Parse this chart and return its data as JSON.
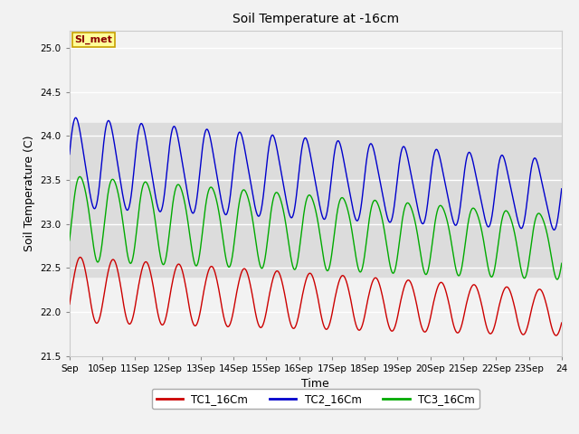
{
  "title": "Soil Temperature at -16cm",
  "xlabel": "Time",
  "ylabel": "Soil Temperature (C)",
  "ylim": [
    21.5,
    25.2
  ],
  "xlim": [
    0,
    15
  ],
  "bg_color": "#f2f2f2",
  "plot_bg_color": "#f2f2f2",
  "band_y1": 22.4,
  "band_y2": 24.15,
  "band_color": "#dcdcdc",
  "annotation_text": "SI_met",
  "annotation_bg": "#ffff99",
  "annotation_border": "#c8a000",
  "annotation_text_color": "#8b0000",
  "colors": {
    "TC1_16Cm": "#cc0000",
    "TC2_16Cm": "#0000cc",
    "TC3_16Cm": "#00aa00"
  },
  "xtick_labels": [
    "Sep",
    "10Sep",
    "11Sep",
    "12Sep",
    "13Sep",
    "14Sep",
    "15Sep",
    "16Sep",
    "17Sep",
    "18Sep",
    "19Sep",
    "20Sep",
    "21Sep",
    "22Sep",
    "23Sep",
    "24"
  ],
  "xtick_positions": [
    0,
    1,
    2,
    3,
    4,
    5,
    6,
    7,
    8,
    9,
    10,
    11,
    12,
    13,
    14,
    15
  ],
  "ytick_positions": [
    21.5,
    22.0,
    22.5,
    23.0,
    23.5,
    24.0,
    24.5,
    25.0
  ],
  "legend_entries": [
    "TC1_16Cm",
    "TC2_16Cm",
    "TC3_16Cm"
  ]
}
